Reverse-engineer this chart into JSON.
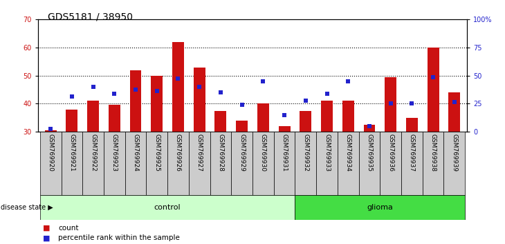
{
  "title": "GDS5181 / 38950",
  "samples": [
    "GSM769920",
    "GSM769921",
    "GSM769922",
    "GSM769923",
    "GSM769924",
    "GSM769925",
    "GSM769926",
    "GSM769927",
    "GSM769928",
    "GSM769929",
    "GSM769930",
    "GSM769931",
    "GSM769932",
    "GSM769933",
    "GSM769934",
    "GSM769935",
    "GSM769936",
    "GSM769937",
    "GSM769938",
    "GSM769939"
  ],
  "bar_heights": [
    30.5,
    38,
    41,
    39.5,
    52,
    50,
    62,
    53,
    37.5,
    34,
    40,
    32,
    37.5,
    41,
    41,
    32.5,
    49.5,
    35,
    60,
    44
  ],
  "blue_dots": [
    31,
    42.5,
    46,
    43.5,
    45,
    44.5,
    49,
    46,
    44,
    39.5,
    48,
    36,
    41,
    43.5,
    48,
    32,
    40,
    40,
    49.5,
    40.5
  ],
  "bar_baseline": 30,
  "ylim_left": [
    30,
    70
  ],
  "ylim_right": [
    0,
    100
  ],
  "yticks_left": [
    30,
    40,
    50,
    60,
    70
  ],
  "yticks_right": [
    0,
    25,
    50,
    75,
    100
  ],
  "ytick_labels_right": [
    "0",
    "25",
    "50",
    "75",
    "100%"
  ],
  "control_count": 12,
  "glioma_count": 8,
  "control_label": "control",
  "glioma_label": "glioma",
  "disease_state_label": "disease state",
  "bar_color": "#cc1111",
  "dot_color": "#2222cc",
  "control_bg": "#ccffcc",
  "glioma_bg": "#44dd44",
  "bg_color": "#ffffff",
  "tick_area_color": "#cccccc",
  "legend_count_label": "count",
  "legend_pct_label": "percentile rank within the sample",
  "title_fontsize": 10,
  "tick_fontsize": 7,
  "label_fontsize": 6.5
}
